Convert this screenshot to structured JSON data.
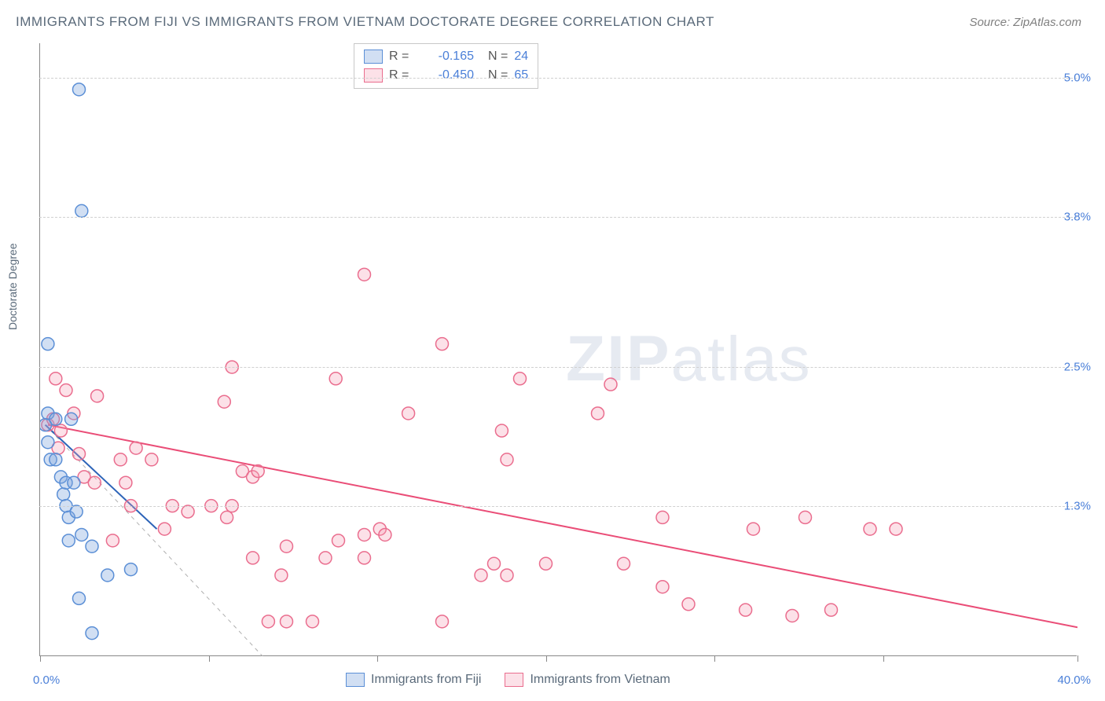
{
  "title": "IMMIGRANTS FROM FIJI VS IMMIGRANTS FROM VIETNAM DOCTORATE DEGREE CORRELATION CHART",
  "source": "Source: ZipAtlas.com",
  "ylabel": "Doctorate Degree",
  "watermark_a": "ZIP",
  "watermark_b": "atlas",
  "chart": {
    "type": "scatter",
    "background_color": "#ffffff",
    "grid_color": "#d0d0d0",
    "axis_color": "#888888",
    "text_color": "#5a6a7a",
    "value_color": "#4a7fd8",
    "xlim": [
      0,
      40
    ],
    "ylim": [
      0,
      5.3
    ],
    "xtick_positions": [
      0,
      6.5,
      13,
      19.5,
      26,
      32.5,
      40
    ],
    "xtick_labels": {
      "min": "0.0%",
      "max": "40.0%"
    },
    "ytick_positions": [
      1.3,
      2.5,
      3.8,
      5.0
    ],
    "ytick_labels": [
      "1.3%",
      "2.5%",
      "3.8%",
      "5.0%"
    ],
    "title_fontsize": 17,
    "label_fontsize": 14,
    "tick_fontsize": 15,
    "marker_radius": 8,
    "marker_stroke_width": 1.5,
    "line_width": 2,
    "series": [
      {
        "name": "Immigrants from Fiji",
        "fill": "rgba(124,164,222,0.35)",
        "stroke": "#5b8fd6",
        "line_color": "#2d64b8",
        "R": "-0.165",
        "N": "24",
        "trend": {
          "x1": 0.2,
          "y1": 2.0,
          "x2": 4.5,
          "y2": 1.1
        },
        "points": [
          [
            1.5,
            4.9
          ],
          [
            1.6,
            3.85
          ],
          [
            0.3,
            2.7
          ],
          [
            0.3,
            2.1
          ],
          [
            0.2,
            2.0
          ],
          [
            0.6,
            2.05
          ],
          [
            1.2,
            2.05
          ],
          [
            0.3,
            1.85
          ],
          [
            0.4,
            1.7
          ],
          [
            0.6,
            1.7
          ],
          [
            0.8,
            1.55
          ],
          [
            0.9,
            1.4
          ],
          [
            1.0,
            1.5
          ],
          [
            1.3,
            1.5
          ],
          [
            1.0,
            1.3
          ],
          [
            1.1,
            1.2
          ],
          [
            1.4,
            1.25
          ],
          [
            1.6,
            1.05
          ],
          [
            1.1,
            1.0
          ],
          [
            2.0,
            0.95
          ],
          [
            2.6,
            0.7
          ],
          [
            3.5,
            0.75
          ],
          [
            1.5,
            0.5
          ],
          [
            2.0,
            0.2
          ]
        ]
      },
      {
        "name": "Immigrants from Vietnam",
        "fill": "rgba(244,154,178,0.30)",
        "stroke": "#ea6d8e",
        "line_color": "#ea4d77",
        "R": "-0.450",
        "N": "65",
        "trend": {
          "x1": 0.3,
          "y1": 2.0,
          "x2": 40.0,
          "y2": 0.25
        },
        "points": [
          [
            12.5,
            3.3
          ],
          [
            15.5,
            2.7
          ],
          [
            0.6,
            2.4
          ],
          [
            7.4,
            2.5
          ],
          [
            11.4,
            2.4
          ],
          [
            7.1,
            2.2
          ],
          [
            2.2,
            2.25
          ],
          [
            1.0,
            2.3
          ],
          [
            0.3,
            2.0
          ],
          [
            0.5,
            2.05
          ],
          [
            0.8,
            1.95
          ],
          [
            1.3,
            2.1
          ],
          [
            14.2,
            2.1
          ],
          [
            18.5,
            2.4
          ],
          [
            21.5,
            2.1
          ],
          [
            22.0,
            2.35
          ],
          [
            17.8,
            1.95
          ],
          [
            0.7,
            1.8
          ],
          [
            1.5,
            1.75
          ],
          [
            3.1,
            1.7
          ],
          [
            3.7,
            1.8
          ],
          [
            4.3,
            1.7
          ],
          [
            1.7,
            1.55
          ],
          [
            2.1,
            1.5
          ],
          [
            3.3,
            1.5
          ],
          [
            7.8,
            1.6
          ],
          [
            8.2,
            1.55
          ],
          [
            8.4,
            1.6
          ],
          [
            18.0,
            1.7
          ],
          [
            3.5,
            1.3
          ],
          [
            5.1,
            1.3
          ],
          [
            5.7,
            1.25
          ],
          [
            6.6,
            1.3
          ],
          [
            7.2,
            1.2
          ],
          [
            7.4,
            1.3
          ],
          [
            2.8,
            1.0
          ],
          [
            4.8,
            1.1
          ],
          [
            9.5,
            0.95
          ],
          [
            11.5,
            1.0
          ],
          [
            12.5,
            1.05
          ],
          [
            13.1,
            1.1
          ],
          [
            13.3,
            1.05
          ],
          [
            24.0,
            1.2
          ],
          [
            27.5,
            1.1
          ],
          [
            29.5,
            1.2
          ],
          [
            32.0,
            1.1
          ],
          [
            33.0,
            1.1
          ],
          [
            8.2,
            0.85
          ],
          [
            9.3,
            0.7
          ],
          [
            11.0,
            0.85
          ],
          [
            12.5,
            0.85
          ],
          [
            17.0,
            0.7
          ],
          [
            18.0,
            0.7
          ],
          [
            17.5,
            0.8
          ],
          [
            19.5,
            0.8
          ],
          [
            22.5,
            0.8
          ],
          [
            24.0,
            0.6
          ],
          [
            25.0,
            0.45
          ],
          [
            27.2,
            0.4
          ],
          [
            29.0,
            0.35
          ],
          [
            30.5,
            0.4
          ],
          [
            8.8,
            0.3
          ],
          [
            9.5,
            0.3
          ],
          [
            10.5,
            0.3
          ],
          [
            15.5,
            0.3
          ]
        ]
      }
    ],
    "dashed_line": {
      "x1": 0.2,
      "y1": 2.0,
      "x2": 9.0,
      "y2": -0.1,
      "color": "#b0b0b0"
    }
  }
}
